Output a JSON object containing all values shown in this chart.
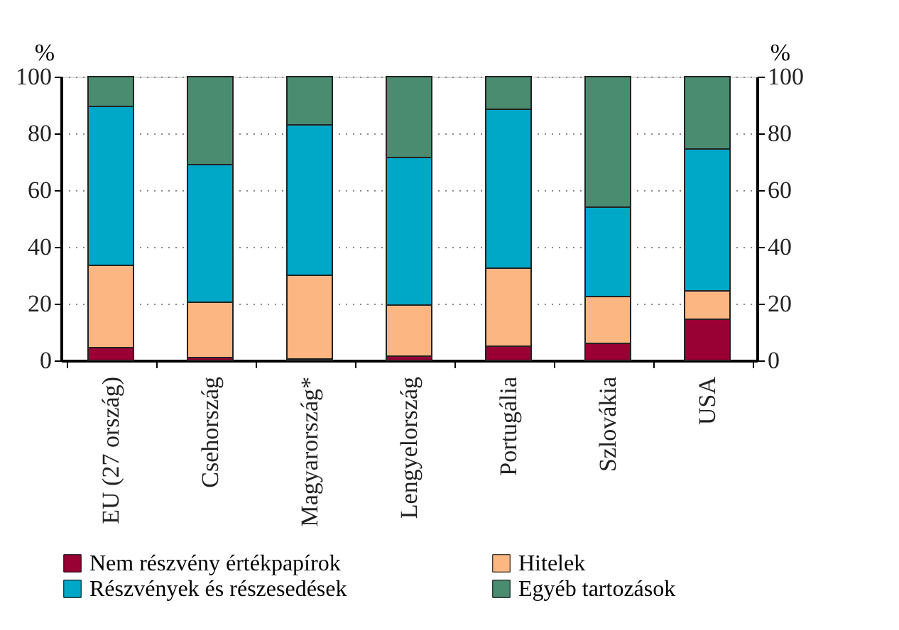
{
  "chart_data": {
    "type": "bar",
    "stacked": true,
    "ylabel": "%",
    "y2label": "%",
    "categories": [
      "EU (27 ország)",
      "Csehország",
      "Magyarország*",
      "Lengyelország",
      "Portugália",
      "Szlovákia",
      "USA"
    ],
    "series": [
      {
        "name": "Nem részvény értékpapírok",
        "color": "#990033",
        "values": [
          4.5,
          1,
          0.5,
          1.5,
          5,
          6,
          14.5
        ]
      },
      {
        "name": "Hitelek",
        "color": "#fbb682",
        "values": [
          29,
          19.5,
          29.5,
          18,
          27.5,
          16.5,
          10
        ]
      },
      {
        "name": "Részvények és részesedések",
        "color": "#00a8c8",
        "values": [
          56,
          48.5,
          53,
          52,
          56,
          31.5,
          50
        ]
      },
      {
        "name": "Egyéb tartozások",
        "color": "#4a8c70",
        "values": [
          10.5,
          31,
          17,
          28.5,
          11.5,
          46,
          25.5
        ]
      }
    ],
    "ylim": [
      0,
      100
    ],
    "yticks": [
      0,
      20,
      40,
      60,
      80,
      100
    ],
    "y2lim": [
      0,
      100
    ],
    "y2ticks": [
      0,
      20,
      40,
      60,
      80,
      100
    ],
    "grid": "y",
    "legend": "bottom"
  }
}
